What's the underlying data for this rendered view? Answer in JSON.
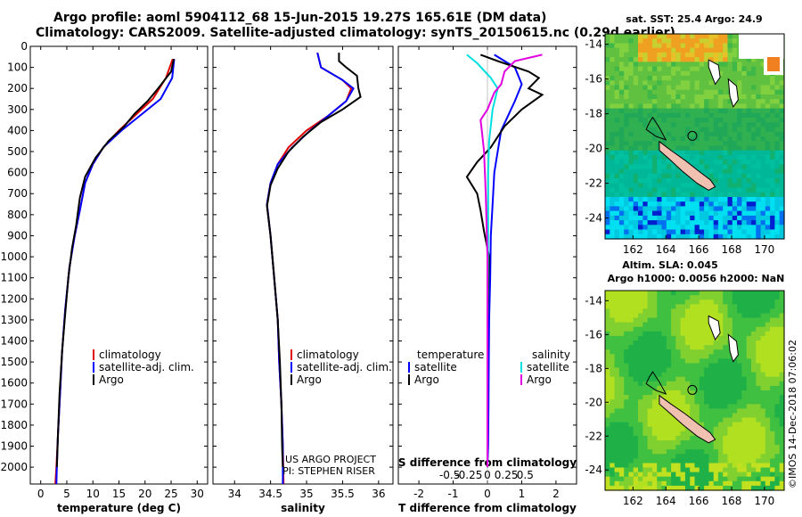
{
  "header": {
    "line1": "Argo profile: aoml 5904112_68 15-Jun-2015 19.27S 165.61E (DM data)",
    "line2": "Climatology: CARS2009. Satellite-adjusted climatology: synTS_20150615.nc (0.29d earlier)"
  },
  "credit": "US ARGO PROJECT\nPI: STEPHEN RISER",
  "stamp": "©IMOS 14-Dec-2018 07:06:02",
  "colors": {
    "climatology": "#e00000",
    "satellite": "#0000ff",
    "argo": "#000000",
    "s_sat": "#00e0e0",
    "s_argo": "#e000e0"
  },
  "chart_data": [
    {
      "type": "line",
      "id": "temperature",
      "xlabel": "temperature (deg C)",
      "ylabel": "",
      "xlim": [
        -2,
        32
      ],
      "ylim": [
        2080,
        0
      ],
      "xticks": [
        0,
        5,
        10,
        15,
        20,
        25,
        30
      ],
      "yticks": [
        0,
        100,
        200,
        300,
        400,
        500,
        600,
        700,
        800,
        900,
        1000,
        1100,
        1200,
        1300,
        1400,
        1500,
        1600,
        1700,
        1800,
        1900,
        2000
      ],
      "legend": [
        "climatology",
        "satellite-adj. clim.",
        "Argo"
      ],
      "series": [
        {
          "name": "climatology",
          "color": "climatology",
          "points": [
            [
              25.3,
              60
            ],
            [
              24,
              150
            ],
            [
              21.5,
              250
            ],
            [
              18,
              330
            ],
            [
              15,
              400
            ],
            [
              12,
              480
            ],
            [
              10,
              560
            ],
            [
              8.5,
              650
            ],
            [
              7.5,
              780
            ],
            [
              6.5,
              900
            ],
            [
              5.5,
              1050
            ],
            [
              4.7,
              1250
            ],
            [
              4.1,
              1450
            ],
            [
              3.7,
              1650
            ],
            [
              3.3,
              1850
            ],
            [
              3,
              2000
            ],
            [
              2.8,
              2080
            ]
          ]
        },
        {
          "name": "satellite-adj. clim.",
          "color": "satellite",
          "points": [
            [
              25.6,
              60
            ],
            [
              25.2,
              150
            ],
            [
              23,
              250
            ],
            [
              19,
              330
            ],
            [
              15.5,
              400
            ],
            [
              12,
              480
            ],
            [
              10,
              560
            ],
            [
              8.5,
              650
            ],
            [
              7.5,
              780
            ],
            [
              6.5,
              900
            ],
            [
              5.5,
              1050
            ],
            [
              4.7,
              1250
            ],
            [
              4.1,
              1450
            ],
            [
              3.7,
              1650
            ],
            [
              3.3,
              1850
            ],
            [
              3.1,
              2000
            ],
            [
              3,
              2080
            ]
          ]
        },
        {
          "name": "Argo",
          "color": "argo",
          "points": [
            [
              25.5,
              60
            ],
            [
              25,
              120
            ],
            [
              22.5,
              200
            ],
            [
              20.5,
              260
            ],
            [
              18,
              320
            ],
            [
              16,
              380
            ],
            [
              13,
              450
            ],
            [
              10.5,
              530
            ],
            [
              8.5,
              620
            ],
            [
              7.5,
              720
            ],
            [
              6.8,
              850
            ],
            [
              6,
              960
            ],
            [
              5.3,
              1100
            ],
            [
              4.6,
              1300
            ],
            [
              4.1,
              1450
            ],
            [
              3.6,
              1650
            ],
            [
              3.3,
              1850
            ],
            [
              3.1,
              2000
            ]
          ]
        }
      ]
    },
    {
      "type": "line",
      "id": "salinity",
      "xlabel": "salinity",
      "ylabel": "",
      "xlim": [
        33.7,
        36.2
      ],
      "ylim": [
        2080,
        0
      ],
      "xticks": [
        34,
        34.5,
        35,
        35.5,
        36
      ],
      "legend": [
        "climatology",
        "satellite-adj. clim.",
        "Argo"
      ],
      "series": [
        {
          "name": "climatology",
          "color": "climatology",
          "points": [
            [
              35.15,
              30
            ],
            [
              35.2,
              100
            ],
            [
              35.5,
              160
            ],
            [
              35.62,
              200
            ],
            [
              35.55,
              260
            ],
            [
              35.3,
              330
            ],
            [
              35.0,
              400
            ],
            [
              34.75,
              480
            ],
            [
              34.6,
              560
            ],
            [
              34.5,
              650
            ],
            [
              34.45,
              750
            ],
            [
              34.5,
              900
            ],
            [
              34.55,
              1100
            ],
            [
              34.6,
              1300
            ],
            [
              34.62,
              1500
            ],
            [
              34.65,
              1700
            ],
            [
              34.67,
              1900
            ],
            [
              34.68,
              2080
            ]
          ]
        },
        {
          "name": "satellite-adj. clim.",
          "color": "satellite",
          "points": [
            [
              35.15,
              30
            ],
            [
              35.2,
              100
            ],
            [
              35.5,
              160
            ],
            [
              35.65,
              200
            ],
            [
              35.55,
              260
            ],
            [
              35.3,
              330
            ],
            [
              35.05,
              400
            ],
            [
              34.8,
              480
            ],
            [
              34.6,
              560
            ],
            [
              34.5,
              650
            ],
            [
              34.45,
              750
            ],
            [
              34.5,
              900
            ],
            [
              34.55,
              1100
            ],
            [
              34.6,
              1300
            ],
            [
              34.62,
              1500
            ],
            [
              34.65,
              1700
            ],
            [
              34.67,
              1900
            ],
            [
              34.67,
              2080
            ]
          ]
        },
        {
          "name": "Argo",
          "color": "argo",
          "points": [
            [
              35.45,
              30
            ],
            [
              35.45,
              70
            ],
            [
              35.55,
              100
            ],
            [
              35.7,
              140
            ],
            [
              35.72,
              200
            ],
            [
              35.75,
              240
            ],
            [
              35.5,
              300
            ],
            [
              35.2,
              360
            ],
            [
              34.95,
              430
            ],
            [
              34.75,
              500
            ],
            [
              34.6,
              580
            ],
            [
              34.5,
              660
            ],
            [
              34.45,
              760
            ],
            [
              34.5,
              900
            ],
            [
              34.55,
              1100
            ],
            [
              34.6,
              1300
            ],
            [
              34.63,
              1500
            ],
            [
              34.65,
              1700
            ],
            [
              34.66,
              1900
            ],
            [
              34.67,
              2000
            ]
          ]
        }
      ]
    },
    {
      "type": "line",
      "id": "difference",
      "xlabel": "T difference from climatology",
      "xlabel2": "S difference from climatology",
      "xlim": [
        -2.6,
        2.6
      ],
      "ylim": [
        2080,
        0
      ],
      "xticks": [
        -2,
        -1,
        0,
        1,
        2
      ],
      "xticks2": [
        "-0.5",
        "-0.25",
        "0",
        "0.25",
        "0.5"
      ],
      "legend_left_title": "temperature",
      "legend_right_title": "salinity",
      "legend": [
        "satellite",
        "Argo",
        "satellite",
        "Argo"
      ],
      "series": [
        {
          "name": "T satellite",
          "color": "satellite",
          "points": [
            [
              0.2,
              40
            ],
            [
              0.8,
              100
            ],
            [
              1.0,
              180
            ],
            [
              0.8,
              260
            ],
            [
              0.6,
              330
            ],
            [
              0.4,
              400
            ],
            [
              0.3,
              500
            ],
            [
              0.2,
              600
            ],
            [
              0.15,
              750
            ],
            [
              0.1,
              900
            ],
            [
              0.08,
              1100
            ],
            [
              0.05,
              1300
            ],
            [
              0.04,
              1500
            ],
            [
              0.03,
              1700
            ],
            [
              0.02,
              1900
            ],
            [
              0,
              2000
            ]
          ]
        },
        {
          "name": "T Argo",
          "color": "argo",
          "points": [
            [
              -0.2,
              40
            ],
            [
              0.3,
              70
            ],
            [
              1.2,
              120
            ],
            [
              1.5,
              150
            ],
            [
              1.2,
              200
            ],
            [
              1.6,
              230
            ],
            [
              1.0,
              300
            ],
            [
              0.5,
              380
            ],
            [
              0.1,
              480
            ],
            [
              -0.3,
              550
            ],
            [
              -0.6,
              620
            ],
            [
              -0.3,
              700
            ],
            [
              -0.2,
              780
            ],
            [
              -0.1,
              880
            ],
            [
              0.05,
              1000
            ],
            [
              0,
              1300
            ],
            [
              0,
              1600
            ],
            [
              0,
              2000
            ]
          ]
        },
        {
          "name": "S satellite",
          "color": "s_sat",
          "points": [
            [
              -0.6,
              40
            ],
            [
              -0.3,
              80
            ],
            [
              0.1,
              150
            ],
            [
              0.3,
              200
            ],
            [
              0.15,
              300
            ],
            [
              0.05,
              450
            ],
            [
              0.02,
              600
            ],
            [
              0.02,
              900
            ],
            [
              0,
              1300
            ],
            [
              0,
              2000
            ]
          ]
        },
        {
          "name": "S Argo",
          "color": "s_argo",
          "points": [
            [
              1.6,
              40
            ],
            [
              0.8,
              70
            ],
            [
              0.5,
              120
            ],
            [
              0.4,
              180
            ],
            [
              0.2,
              220
            ],
            [
              0,
              300
            ],
            [
              -0.2,
              350
            ],
            [
              -0.15,
              420
            ],
            [
              -0.1,
              500
            ],
            [
              -0.05,
              700
            ],
            [
              0,
              1000
            ],
            [
              0,
              2000
            ]
          ]
        }
      ]
    }
  ],
  "maps": [
    {
      "title1": "sat. SST: 25.4 Argo: 24.9",
      "title2": "",
      "xticks": [
        162,
        164,
        166,
        168,
        170
      ],
      "yticks": [
        -14,
        -16,
        -18,
        -20,
        -22,
        -24
      ],
      "xlim": [
        160.3,
        171.2
      ],
      "ylim": [
        -25.2,
        -13.4
      ],
      "kind": "sst"
    },
    {
      "title1": "Altim. SLA: 0.045",
      "title2": "Argo h1000: 0.0056 h2000: NaN",
      "xticks": [
        162,
        164,
        166,
        168,
        170
      ],
      "yticks": [
        -14,
        -16,
        -18,
        -20,
        -22,
        -24
      ],
      "xlim": [
        160.3,
        171.2
      ],
      "ylim": [
        -25.2,
        -13.4
      ],
      "kind": "sla"
    }
  ],
  "argo_position": [
    165.61,
    -19.27
  ]
}
